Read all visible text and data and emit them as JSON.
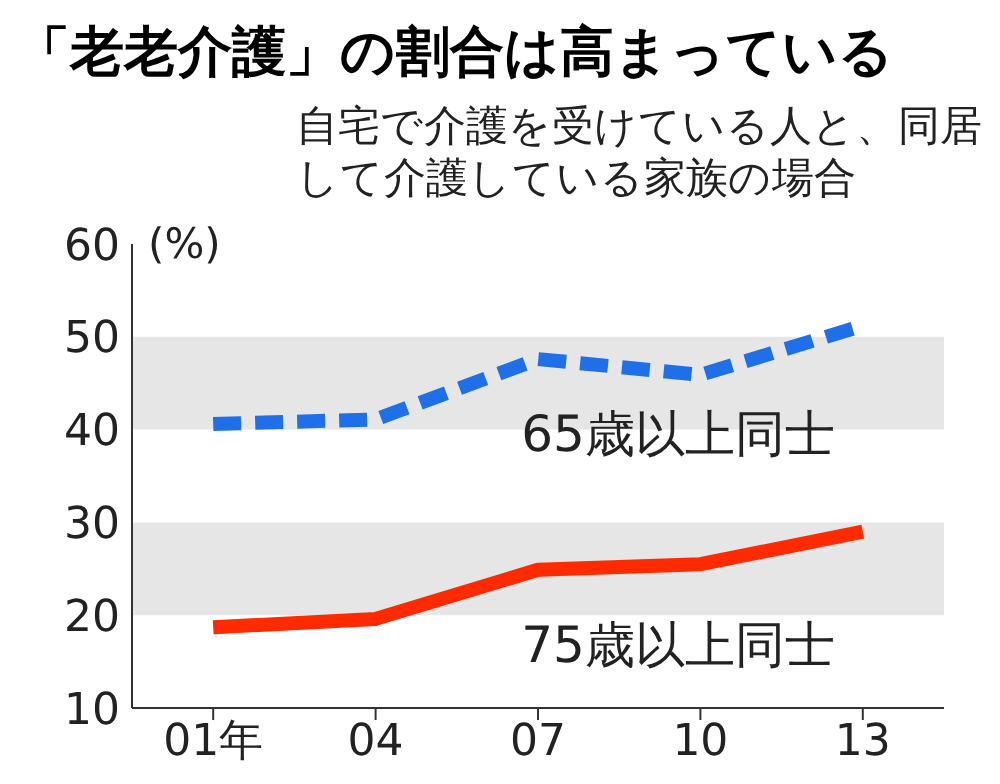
{
  "chart_data": {
    "type": "line",
    "title": "「老老介護」の割合は高まっている",
    "subtitle": "自宅で介護を受けている人と、同居して介護している家族の場合",
    "ylabel": "(%)",
    "categories": [
      "01年",
      "04",
      "07",
      "10",
      "13"
    ],
    "series": [
      {
        "name": "65歳以上同士",
        "color": "#1e6fe8",
        "line_style": "dashed",
        "values": [
          40.6,
          41.1,
          47.6,
          45.9,
          51.2
        ]
      },
      {
        "name": "75歳以上同士",
        "color": "#ff2a00",
        "line_style": "solid",
        "values": [
          18.7,
          19.6,
          24.9,
          25.5,
          29.0
        ]
      }
    ],
    "ylim": [
      10,
      60
    ],
    "yticks": [
      10,
      20,
      30,
      40,
      50,
      60
    ],
    "bands": [
      {
        "axis": "y",
        "from": 40,
        "to": 50,
        "color": "#e6e6e6"
      },
      {
        "axis": "y",
        "from": 20,
        "to": 30,
        "color": "#e6e6e6"
      }
    ],
    "grid": false,
    "legend": false,
    "marker": "none"
  }
}
